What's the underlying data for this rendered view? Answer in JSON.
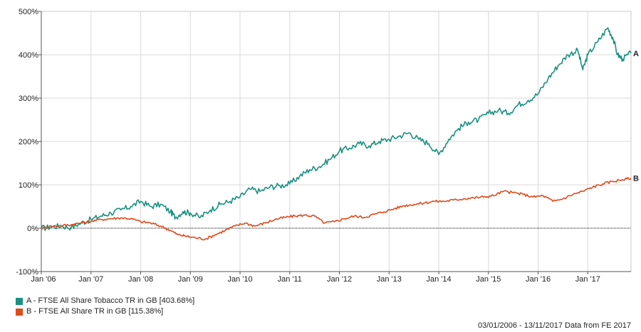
{
  "chart_data": {
    "type": "line",
    "y_ticks": [
      "500%",
      "400%",
      "300%",
      "200%",
      "100%",
      "0%",
      "-100%"
    ],
    "y_tick_values": [
      500,
      400,
      300,
      200,
      100,
      0,
      -100
    ],
    "ylim": [
      -100,
      500
    ],
    "x_tick_labels": [
      "Jan '06",
      "Jan '07",
      "Jan '08",
      "Jan '09",
      "Jan '10",
      "Jan '11",
      "Jan '12",
      "Jan '13",
      "Jan '14",
      "Jan '15",
      "Jan '16",
      "Jan '17"
    ],
    "x_tick_years": [
      2006,
      2007,
      2008,
      2009,
      2010,
      2011,
      2012,
      2013,
      2014,
      2015,
      2016,
      2017
    ],
    "xlim": [
      2006.0,
      2017.87
    ],
    "grid": true,
    "zero_line": "dotted",
    "series": [
      {
        "name": "A",
        "legend_label": "A - FTSE All Share Tobacco TR in GB [403.68%]",
        "color": "#1a9080",
        "x": [
          2006.0,
          2006.2,
          2006.4,
          2006.6,
          2006.8,
          2007.0,
          2007.2,
          2007.4,
          2007.6,
          2007.8,
          2008.0,
          2008.2,
          2008.4,
          2008.6,
          2008.7,
          2008.85,
          2009.0,
          2009.2,
          2009.4,
          2009.6,
          2009.8,
          2010.0,
          2010.2,
          2010.4,
          2010.6,
          2010.8,
          2011.0,
          2011.2,
          2011.4,
          2011.6,
          2011.8,
          2012.0,
          2012.2,
          2012.4,
          2012.6,
          2012.8,
          2013.0,
          2013.2,
          2013.4,
          2013.6,
          2013.8,
          2014.0,
          2014.2,
          2014.4,
          2014.6,
          2014.8,
          2015.0,
          2015.2,
          2015.4,
          2015.6,
          2015.8,
          2016.0,
          2016.2,
          2016.4,
          2016.6,
          2016.8,
          2016.9,
          2017.0,
          2017.2,
          2017.4,
          2017.5,
          2017.6,
          2017.7,
          2017.87
        ],
        "values": [
          0,
          3,
          5,
          2,
          12,
          20,
          28,
          35,
          42,
          50,
          62,
          50,
          55,
          38,
          25,
          38,
          35,
          25,
          42,
          55,
          62,
          72,
          90,
          85,
          95,
          98,
          102,
          120,
          135,
          142,
          158,
          178,
          185,
          195,
          190,
          200,
          205,
          212,
          220,
          205,
          195,
          170,
          205,
          230,
          245,
          250,
          265,
          272,
          265,
          285,
          295,
          310,
          345,
          375,
          400,
          410,
          365,
          400,
          430,
          462,
          440,
          400,
          390,
          403.68
        ]
      },
      {
        "name": "B",
        "legend_label": "B - FTSE All Share TR in GB [115.38%]",
        "color": "#e04a1c",
        "x": [
          2006.0,
          2006.2,
          2006.4,
          2006.6,
          2006.8,
          2007.0,
          2007.2,
          2007.4,
          2007.6,
          2007.8,
          2008.0,
          2008.2,
          2008.4,
          2008.6,
          2008.75,
          2008.9,
          2009.1,
          2009.3,
          2009.5,
          2009.7,
          2009.9,
          2010.1,
          2010.3,
          2010.5,
          2010.7,
          2010.9,
          2011.1,
          2011.3,
          2011.5,
          2011.7,
          2011.9,
          2012.1,
          2012.3,
          2012.5,
          2012.7,
          2012.9,
          2013.1,
          2013.3,
          2013.5,
          2013.7,
          2013.9,
          2014.1,
          2014.3,
          2014.5,
          2014.7,
          2014.9,
          2015.1,
          2015.3,
          2015.5,
          2015.7,
          2015.9,
          2016.1,
          2016.3,
          2016.5,
          2016.7,
          2016.9,
          2017.1,
          2017.3,
          2017.5,
          2017.7,
          2017.87
        ],
        "values": [
          0,
          5,
          6,
          8,
          12,
          16,
          20,
          22,
          24,
          22,
          15,
          12,
          5,
          -5,
          -15,
          -18,
          -22,
          -25,
          -15,
          -5,
          5,
          12,
          5,
          12,
          20,
          25,
          28,
          30,
          28,
          12,
          15,
          22,
          28,
          25,
          32,
          38,
          45,
          52,
          55,
          58,
          62,
          62,
          65,
          68,
          70,
          72,
          75,
          85,
          82,
          78,
          72,
          75,
          62,
          68,
          78,
          85,
          95,
          102,
          108,
          112,
          115.38
        ]
      }
    ],
    "footer": "03/01/2006 - 13/11/2017 Data from FE 2017"
  }
}
